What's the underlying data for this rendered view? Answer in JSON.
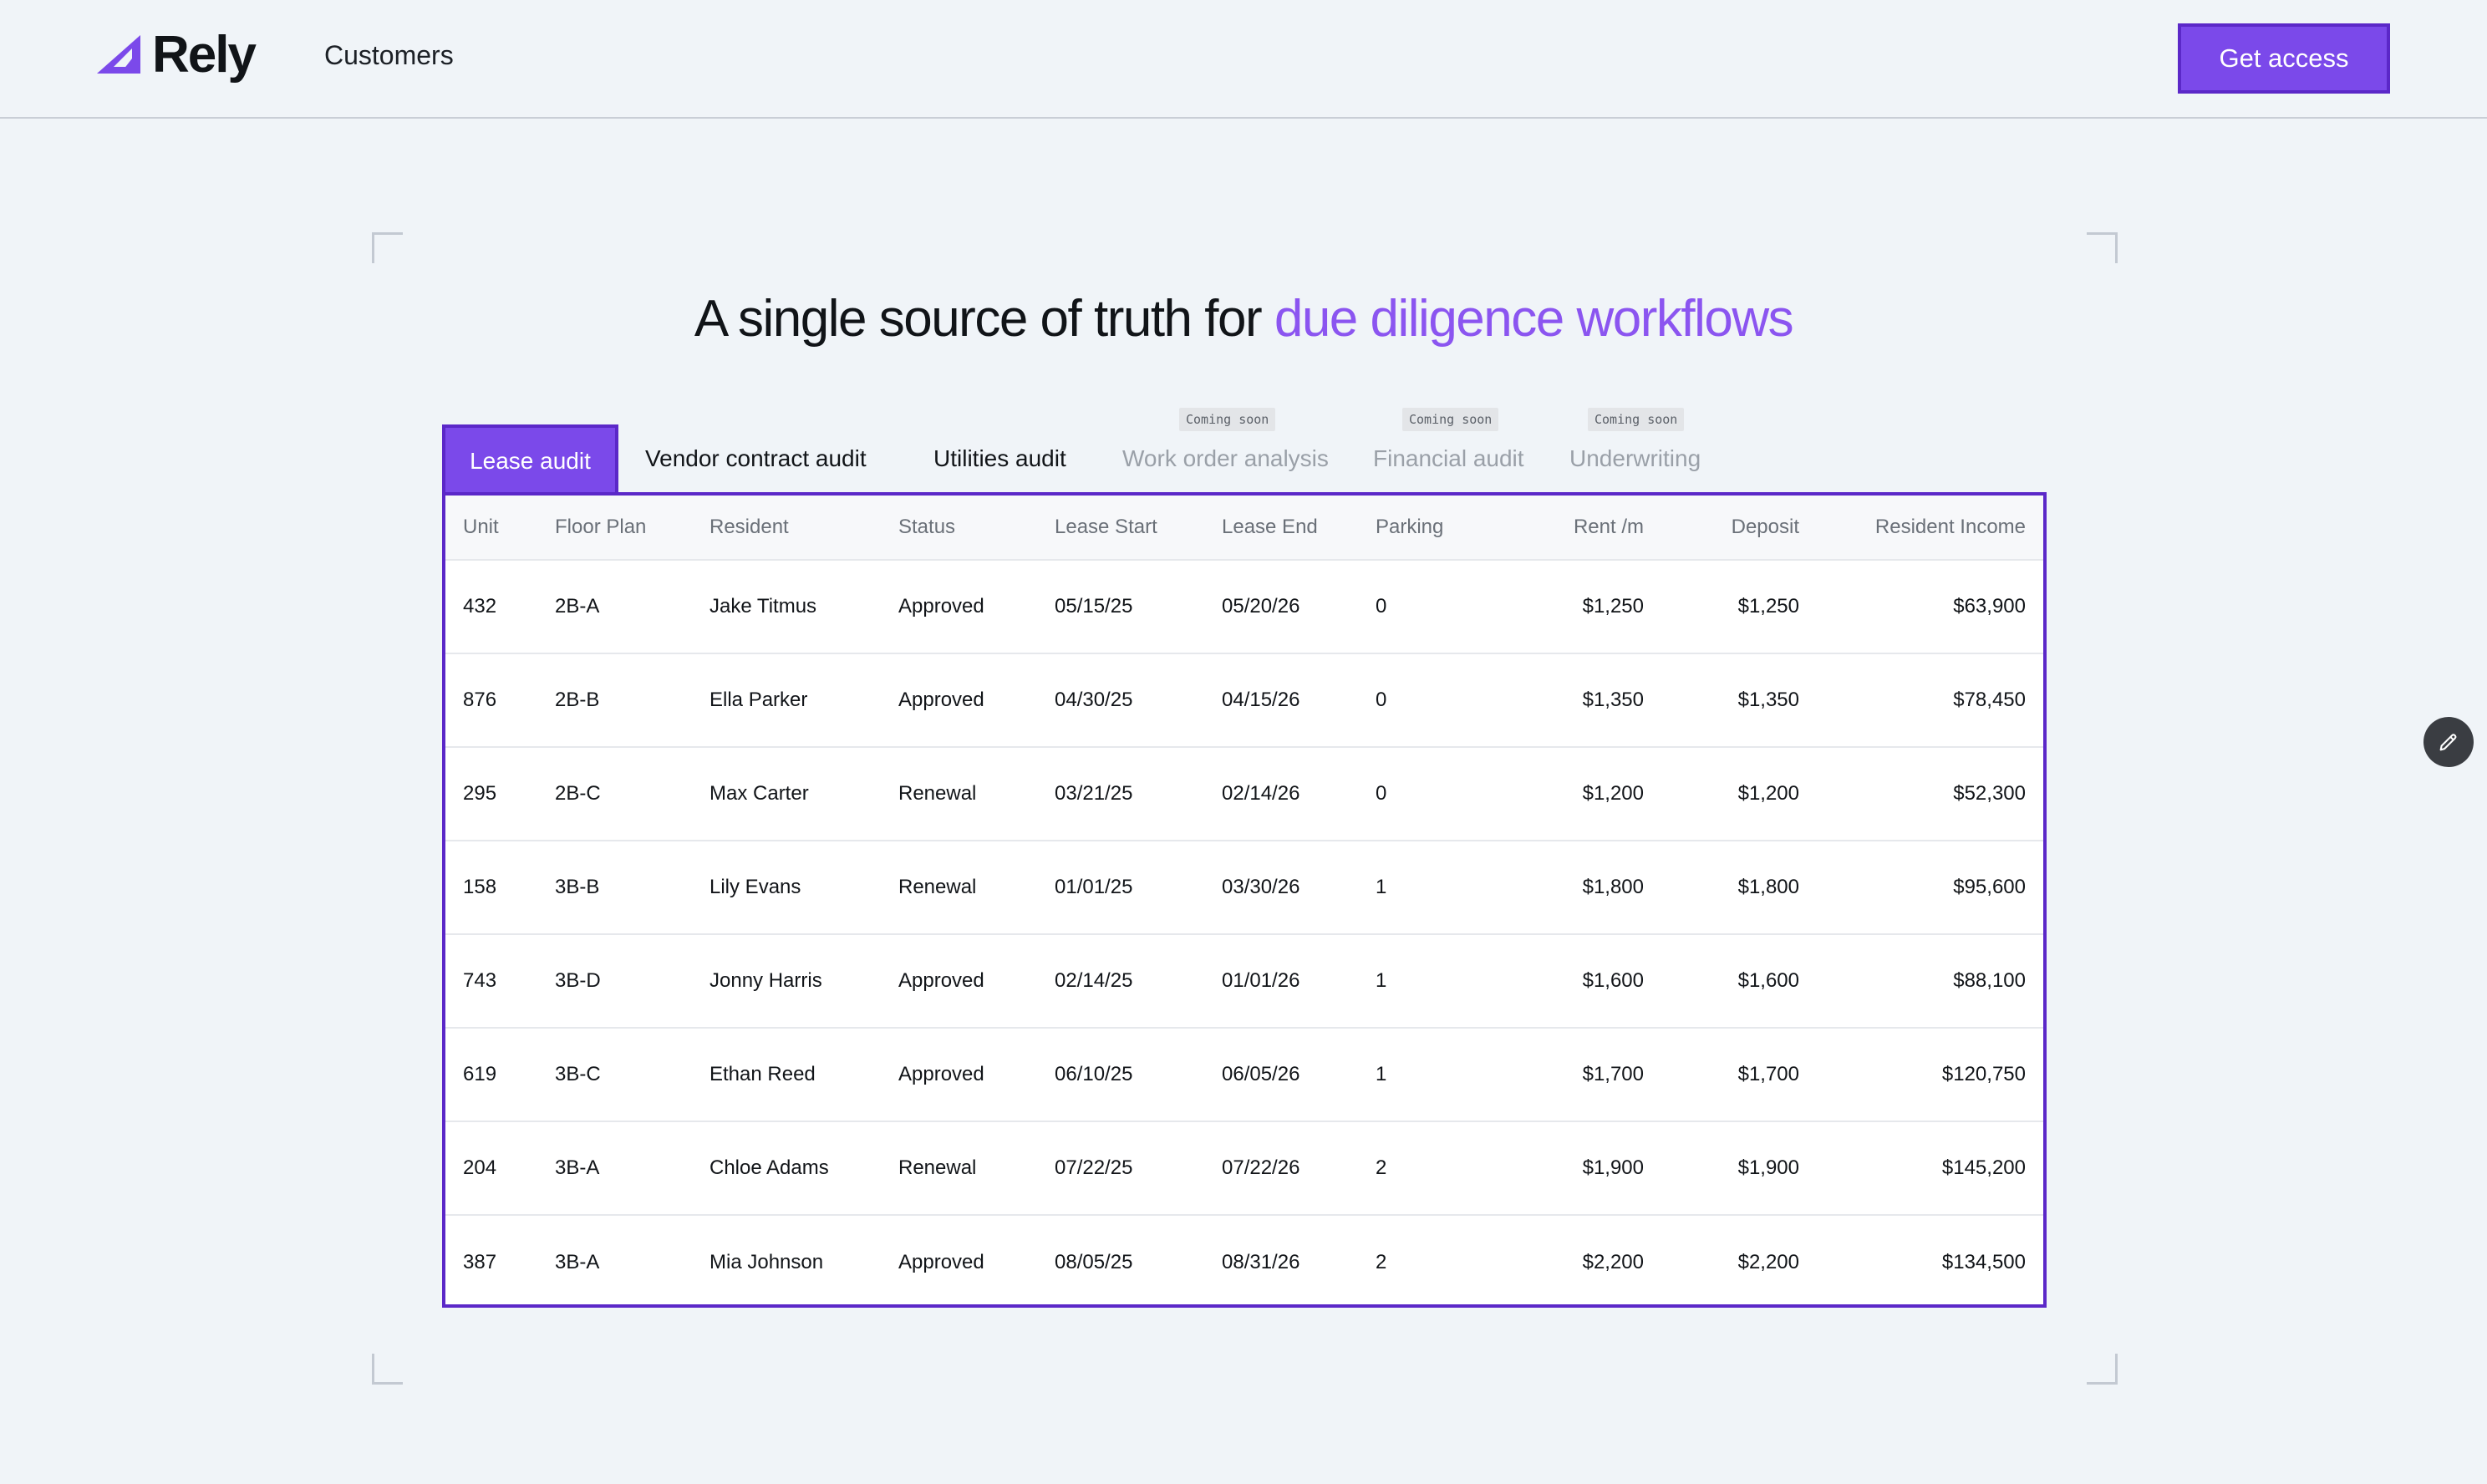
{
  "brand": {
    "name": "Rely",
    "accent": "#7b49ea"
  },
  "nav": {
    "customers": "Customers",
    "cta": "Get access"
  },
  "headline": {
    "lead": "A single source of truth for ",
    "accent": "due diligence workflows"
  },
  "tabs": [
    {
      "label": "Lease audit",
      "active": true,
      "badge": ""
    },
    {
      "label": "Vendor contract audit",
      "active": false,
      "badge": ""
    },
    {
      "label": "Utilities audit",
      "active": false,
      "badge": ""
    },
    {
      "label": "Work order analysis",
      "active": false,
      "badge": "Coming soon"
    },
    {
      "label": "Financial audit",
      "active": false,
      "badge": "Coming soon"
    },
    {
      "label": "Underwriting",
      "active": false,
      "badge": "Coming soon"
    }
  ],
  "table": {
    "columns": [
      "Unit",
      "Floor Plan",
      "Resident",
      "Status",
      "Lease Start",
      "Lease End",
      "Parking",
      "Rent /m",
      "Deposit",
      "Resident Income"
    ],
    "rows": [
      [
        "432",
        "2B-A",
        "Jake Titmus",
        "Approved",
        "05/15/25",
        "05/20/26",
        "0",
        "$1,250",
        "$1,250",
        "$63,900"
      ],
      [
        "876",
        "2B-B",
        "Ella Parker",
        "Approved",
        "04/30/25",
        "04/15/26",
        "0",
        "$1,350",
        "$1,350",
        "$78,450"
      ],
      [
        "295",
        "2B-C",
        "Max Carter",
        "Renewal",
        "03/21/25",
        "02/14/26",
        "0",
        "$1,200",
        "$1,200",
        "$52,300"
      ],
      [
        "158",
        "3B-B",
        "Lily Evans",
        "Renewal",
        "01/01/25",
        "03/30/26",
        "1",
        "$1,800",
        "$1,800",
        "$95,600"
      ],
      [
        "743",
        "3B-D",
        "Jonny Harris",
        "Approved",
        "02/14/25",
        "01/01/26",
        "1",
        "$1,600",
        "$1,600",
        "$88,100"
      ],
      [
        "619",
        "3B-C",
        "Ethan Reed",
        "Approved",
        "06/10/25",
        "06/05/26",
        "1",
        "$1,700",
        "$1,700",
        "$120,750"
      ],
      [
        "204",
        "3B-A",
        "Chloe Adams",
        "Renewal",
        "07/22/25",
        "07/22/26",
        "2",
        "$1,900",
        "$1,900",
        "$145,200"
      ],
      [
        "387",
        "3B-A",
        "Mia Johnson",
        "Approved",
        "08/05/25",
        "08/31/26",
        "2",
        "$2,200",
        "$2,200",
        "$134,500"
      ]
    ]
  },
  "edit_fab": {
    "icon": "pencil-icon"
  }
}
